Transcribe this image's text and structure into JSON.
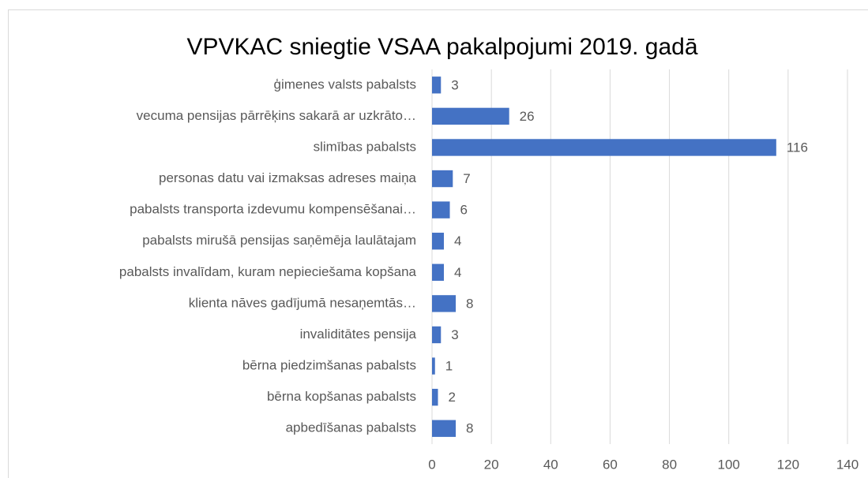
{
  "chart_data": {
    "type": "bar",
    "orientation": "horizontal",
    "title": "VPVKAC sniegtie VSAA pakalpojumi 2019. gadā",
    "categories": [
      "ģimenes valsts pabalsts",
      "vecuma pensijas pārrēķins sakarā ar uzkrāto…",
      "slimības pabalsts",
      "personas datu vai izmaksas adreses maiņa",
      "pabalsts transporta izdevumu kompensēšanai…",
      "pabalsts mirušā pensijas saņēmēja laulātajam",
      "pabalsts invalīdam, kuram nepieciešama kopšana",
      "klienta nāves gadījumā nesaņemtās…",
      "invaliditātes pensija",
      "bērna piedzimšanas pabalsts",
      "bērna kopšanas pabalsts",
      "apbedīšanas pabalsts"
    ],
    "values": [
      3,
      26,
      116,
      7,
      6,
      4,
      4,
      8,
      3,
      1,
      2,
      8
    ],
    "color": "#4472c4",
    "xlim": [
      0,
      140
    ],
    "xticks": [
      0,
      20,
      40,
      60,
      80,
      100,
      120,
      140
    ],
    "grid": true
  }
}
